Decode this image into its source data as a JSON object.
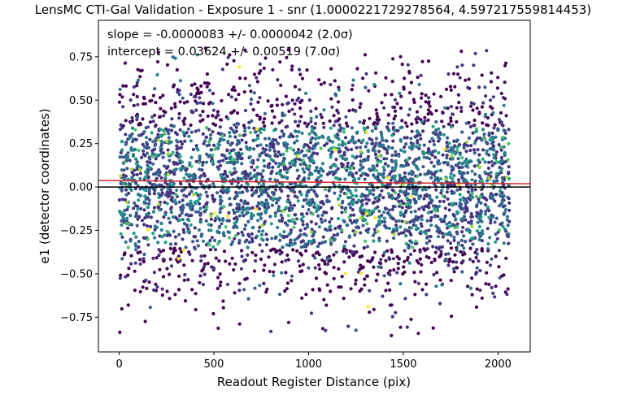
{
  "chart_data": {
    "type": "scatter",
    "title": "LensMC CTI-Gal Validation - Exposure 1 - snr (1.0000221729278564, 4.597217559814453)",
    "xlabel": "Readout Register Distance (pix)",
    "ylabel": "e1 (detector coordinates)",
    "xlim": [
      -110,
      2170
    ],
    "ylim": [
      -0.95,
      0.96
    ],
    "xticks": [
      0,
      500,
      1000,
      1500,
      2000
    ],
    "xtick_labels": [
      "0",
      "500",
      "1000",
      "1500",
      "2000"
    ],
    "yticks": [
      -0.75,
      -0.5,
      -0.25,
      0.0,
      0.25,
      0.5,
      0.75
    ],
    "ytick_labels": [
      "−0.75",
      "−0.50",
      "−0.25",
      "0.00",
      "0.25",
      "0.50",
      "0.75"
    ],
    "grid": false,
    "legend": "none",
    "annotations": [
      "slope = -0.0000083 +/- 0.0000042 (2.0σ)",
      "intercept = 0.03624 +/- 0.00519 (7.0σ)"
    ],
    "fit_line": {
      "slope": -8.3e-06,
      "intercept": 0.03624,
      "color": "#d62728"
    },
    "zero_line": {
      "y": 0.0,
      "color": "#000000"
    },
    "points_summary": {
      "x_range": [
        0,
        2060
      ],
      "y_range": [
        -0.88,
        0.8
      ],
      "colormap": "viridis",
      "dense_band": [
        -0.4,
        0.4
      ]
    },
    "points": []
  }
}
